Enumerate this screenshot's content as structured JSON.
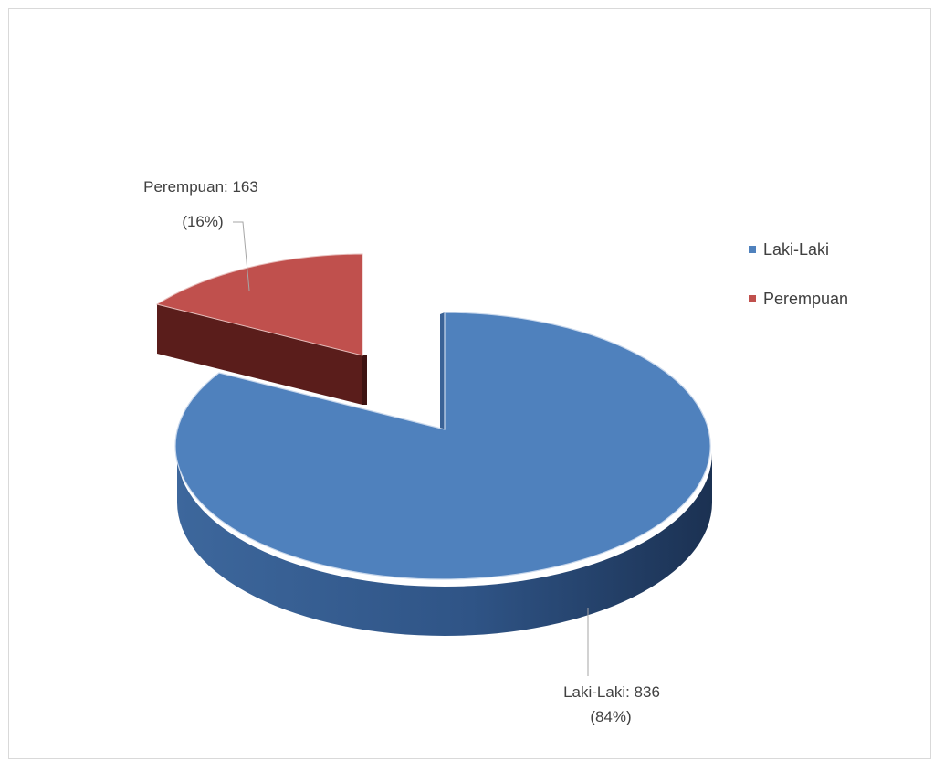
{
  "chart_data": {
    "type": "pie",
    "style": "3d-exploded",
    "slices": [
      {
        "label": "Laki-Laki",
        "value": 836,
        "percent": 84,
        "color": "#4f81bd",
        "side_color": "#26436a"
      },
      {
        "label": "Perempuan",
        "value": 163,
        "percent": 16,
        "color": "#c0504d",
        "side_color": "#5e1f1d"
      }
    ],
    "data_labels": [
      {
        "line1": "Laki-Laki: 836",
        "line2": "(84%)"
      },
      {
        "line1": "Perempuan: 163",
        "line2": "(16%)"
      }
    ],
    "legend_position": "right",
    "legend": [
      "Laki-Laki",
      "Perempuan"
    ]
  }
}
